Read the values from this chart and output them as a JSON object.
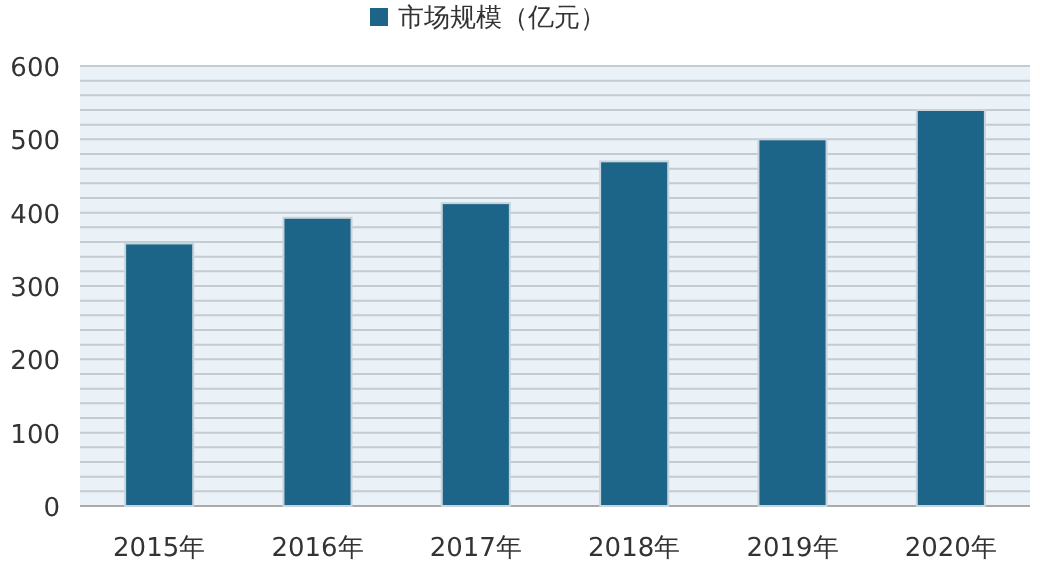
{
  "chart_data": {
    "type": "bar",
    "categories": [
      "2015年",
      "2016年",
      "2017年",
      "2018年",
      "2019年",
      "2020年"
    ],
    "series": [
      {
        "name": "市场规模（亿元）",
        "color": "#1c6488",
        "values": [
          358,
          393,
          413,
          470,
          500,
          540
        ]
      }
    ],
    "ylim": [
      0,
      600
    ],
    "yticks": [
      0,
      {
        "value": 20,
        "label": null
      },
      {
        "value": 40,
        "label": null
      },
      {
        "value": 60,
        "label": null
      },
      {
        "value": 80,
        "label": null
      },
      100,
      {
        "value": 120,
        "label": null
      },
      {
        "value": 140,
        "label": null
      },
      {
        "value": 160,
        "label": null
      },
      {
        "value": 180,
        "label": null
      },
      200,
      {
        "value": 220,
        "label": null
      },
      {
        "value": 240,
        "label": null
      },
      {
        "value": 260,
        "label": null
      },
      {
        "value": 280,
        "label": null
      },
      300,
      {
        "value": 320,
        "label": null
      },
      {
        "value": 340,
        "label": null
      },
      {
        "value": 360,
        "label": null
      },
      {
        "value": 380,
        "label": null
      },
      400,
      {
        "value": 420,
        "label": null
      },
      {
        "value": 440,
        "label": null
      },
      {
        "value": 460,
        "label": null
      },
      {
        "value": 480,
        "label": null
      },
      500,
      {
        "value": 520,
        "label": null
      },
      {
        "value": 540,
        "label": null
      },
      {
        "value": 560,
        "label": null
      },
      {
        "value": 580,
        "label": null
      },
      600
    ],
    "grid": "y",
    "legend": "top"
  }
}
